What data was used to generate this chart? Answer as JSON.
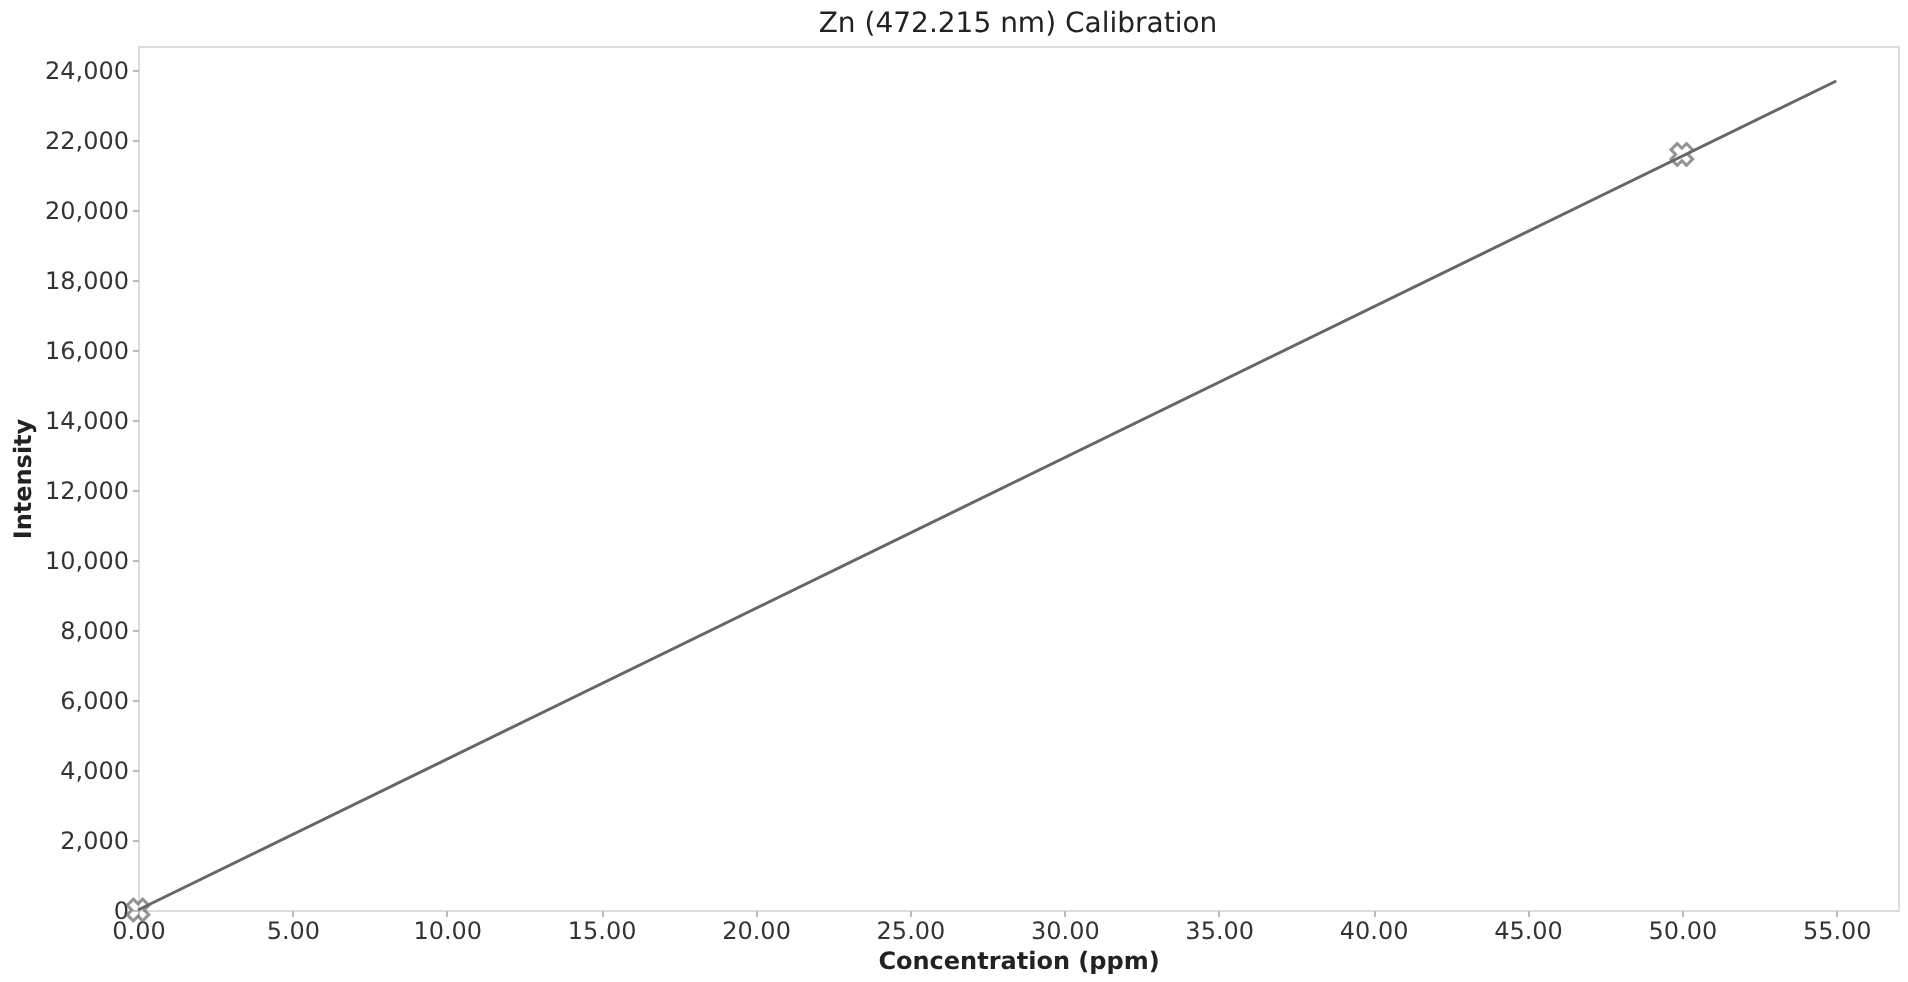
{
  "chart_data": {
    "type": "line",
    "title": "Zn (472.215 nm) Calibration",
    "xlabel": "Concentration (ppm)",
    "ylabel": "Intensity",
    "xlim": [
      0,
      57
    ],
    "xticks": [
      {
        "value": 0,
        "label": "0.00"
      },
      {
        "value": 5,
        "label": "5.00"
      },
      {
        "value": 10,
        "label": "10.00"
      },
      {
        "value": 15,
        "label": "15.00"
      },
      {
        "value": 20,
        "label": "20.00"
      },
      {
        "value": 25,
        "label": "25.00"
      },
      {
        "value": 30,
        "label": "30.00"
      },
      {
        "value": 35,
        "label": "35.00"
      },
      {
        "value": 40,
        "label": "40.00"
      },
      {
        "value": 45,
        "label": "45.00"
      },
      {
        "value": 50,
        "label": "50.00"
      },
      {
        "value": 55,
        "label": "55.00"
      }
    ],
    "ylim": [
      0,
      24700
    ],
    "yticks": [
      0,
      {
        "value": 2000,
        "label": "2,000"
      },
      {
        "value": 4000,
        "label": "4,000"
      },
      {
        "value": 6000,
        "label": "6,000"
      },
      {
        "value": 8000,
        "label": "8,000"
      },
      {
        "value": 10000,
        "label": "10,000"
      },
      {
        "value": 12000,
        "label": "12,000"
      },
      {
        "value": 14000,
        "label": "14,000"
      },
      {
        "value": 16000,
        "label": "16,000"
      },
      {
        "value": 18000,
        "label": "18,000"
      },
      {
        "value": 20000,
        "label": "20,000"
      },
      {
        "value": 22000,
        "label": "22,000"
      },
      {
        "value": 24000,
        "label": "24,000"
      }
    ],
    "grid": false,
    "series": [
      {
        "color": "#666666",
        "x": [
          0,
          55
        ],
        "values": [
          0,
          23700
        ],
        "line_style": "solid",
        "marker": "none"
      },
      {
        "type": "scatter",
        "color": "#666666",
        "x": [
          0,
          50
        ],
        "values": [
          0,
          21600
        ],
        "marker": "cross"
      }
    ]
  }
}
